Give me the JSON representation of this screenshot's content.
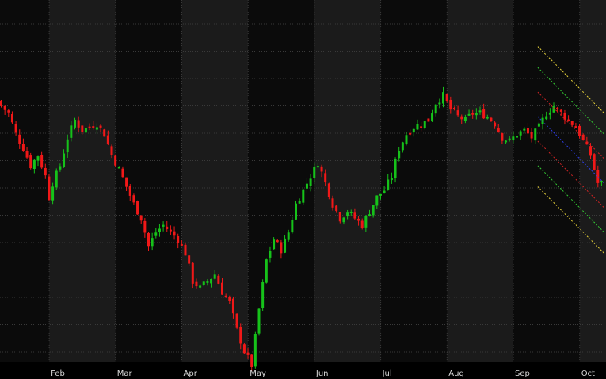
{
  "colors": {
    "background": "#000000",
    "band_dark": "#0b0b0b",
    "band_light": "#1b1b1b",
    "grid": "#3a3a3a",
    "up_candle": "#16c21a",
    "down_candle": "#f01818",
    "axis_text": "#d8d8d8",
    "channel_outer": "#e8d33a",
    "channel_mid": "#34c834",
    "channel_inner": "#d02424",
    "channel_center": "#2e3fe8"
  },
  "chart_data": {
    "type": "candlestick",
    "title": "",
    "xlabel": "",
    "ylabel": "",
    "grid": true,
    "x_axis_labels": [
      "Feb",
      "Mar",
      "Apr",
      "May",
      "Jun",
      "Jul",
      "Aug",
      "Sep",
      "Oct"
    ],
    "x_axis_label_positions_bar_index": [
      14,
      32,
      50,
      68,
      86,
      104,
      122,
      140,
      158
    ],
    "y_scale": "relative (unlabeled)",
    "ylim": [
      0,
      100
    ],
    "close_series": [
      [
        0,
        72
      ],
      [
        2,
        70
      ],
      [
        4,
        64
      ],
      [
        6,
        60
      ],
      [
        8,
        55
      ],
      [
        10,
        58
      ],
      [
        12,
        52
      ],
      [
        13,
        46
      ],
      [
        14,
        50
      ],
      [
        16,
        55
      ],
      [
        18,
        63
      ],
      [
        20,
        68
      ],
      [
        22,
        65
      ],
      [
        24,
        66
      ],
      [
        26,
        67
      ],
      [
        28,
        64
      ],
      [
        30,
        58
      ],
      [
        32,
        54
      ],
      [
        34,
        49
      ],
      [
        36,
        44
      ],
      [
        38,
        40
      ],
      [
        40,
        32
      ],
      [
        42,
        36
      ],
      [
        44,
        38
      ],
      [
        46,
        36
      ],
      [
        48,
        34
      ],
      [
        50,
        30
      ],
      [
        52,
        22
      ],
      [
        54,
        20
      ],
      [
        56,
        22
      ],
      [
        58,
        24
      ],
      [
        60,
        19
      ],
      [
        62,
        16
      ],
      [
        64,
        8
      ],
      [
        66,
        2
      ],
      [
        68,
        -2
      ],
      [
        70,
        14
      ],
      [
        72,
        28
      ],
      [
        74,
        34
      ],
      [
        76,
        31
      ],
      [
        78,
        36
      ],
      [
        80,
        44
      ],
      [
        82,
        48
      ],
      [
        84,
        52
      ],
      [
        86,
        56
      ],
      [
        88,
        50
      ],
      [
        90,
        44
      ],
      [
        92,
        40
      ],
      [
        94,
        42
      ],
      [
        96,
        40
      ],
      [
        98,
        38
      ],
      [
        100,
        42
      ],
      [
        102,
        46
      ],
      [
        104,
        48
      ],
      [
        106,
        52
      ],
      [
        108,
        60
      ],
      [
        110,
        64
      ],
      [
        112,
        66
      ],
      [
        114,
        67
      ],
      [
        116,
        68
      ],
      [
        118,
        73
      ],
      [
        120,
        75
      ],
      [
        122,
        71
      ],
      [
        124,
        69
      ],
      [
        126,
        68
      ],
      [
        128,
        70
      ],
      [
        130,
        70
      ],
      [
        132,
        69
      ],
      [
        134,
        67
      ],
      [
        136,
        63
      ],
      [
        138,
        62
      ],
      [
        140,
        64
      ],
      [
        142,
        65
      ],
      [
        144,
        63
      ],
      [
        146,
        66
      ],
      [
        148,
        70
      ],
      [
        150,
        72
      ],
      [
        152,
        70
      ],
      [
        154,
        68
      ],
      [
        156,
        66
      ],
      [
        158,
        62
      ],
      [
        160,
        58
      ],
      [
        162,
        50
      ]
    ],
    "bar_count": 164,
    "regression_channel": {
      "start_bar_index": 146,
      "end_bar_index": 164,
      "center_start": 69,
      "center_end": 50,
      "offsets": [
        {
          "band": "outer",
          "offset": 20,
          "color": "#e8d33a"
        },
        {
          "band": "mid",
          "offset": 14,
          "color": "#34c834"
        },
        {
          "band": "inner",
          "offset": 7,
          "color": "#d02424"
        },
        {
          "band": "center",
          "offset": 0,
          "color": "#2e3fe8"
        }
      ]
    }
  }
}
